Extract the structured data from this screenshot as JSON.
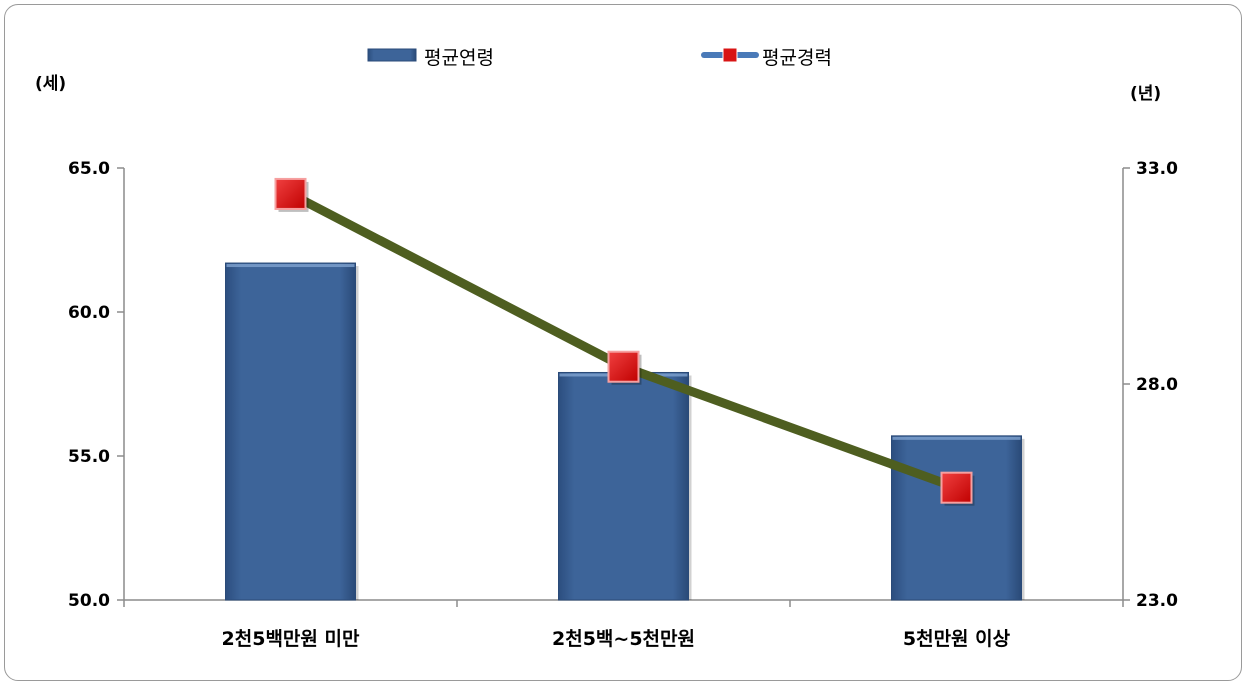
{
  "chart_data": {
    "type": "bar",
    "categories": [
      "2천5백만원 미만",
      "2천5백~5천만원",
      "5천만원 이상"
    ],
    "series": [
      {
        "name": "평균연령",
        "type": "bar",
        "axis": "left",
        "values": [
          61.7,
          57.9,
          55.7
        ],
        "color": "#3d6499"
      },
      {
        "name": "평균경력",
        "type": "line",
        "axis": "right",
        "values": [
          32.4,
          28.4,
          25.6
        ],
        "color": "#4e5e20",
        "marker_color": "#e01010"
      }
    ],
    "left_axis": {
      "unit": "(세)",
      "ylim": [
        50,
        65
      ],
      "ticks": [
        "50.0",
        "55.0",
        "60.0",
        "65.0"
      ]
    },
    "right_axis": {
      "unit": "(년)",
      "ylim": [
        23,
        33
      ],
      "ticks": [
        "23.0",
        "28.0",
        "33.0"
      ]
    },
    "legend_position": "top",
    "grid": false
  }
}
